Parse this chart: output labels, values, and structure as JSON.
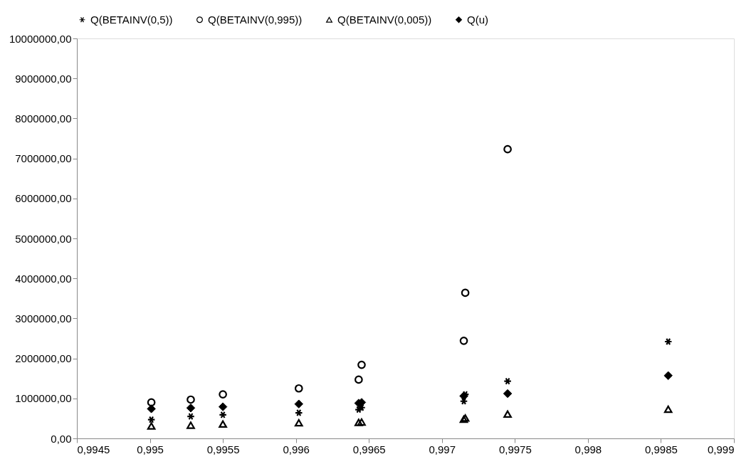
{
  "chart_data": {
    "type": "scatter",
    "legend": "top",
    "grid": false,
    "xlim": [
      0.9945,
      0.999
    ],
    "xticks": [
      {
        "value": 0.9945,
        "label": "0,9945"
      },
      {
        "value": 0.995,
        "label": "0,995"
      },
      {
        "value": 0.9955,
        "label": "0,9955"
      },
      {
        "value": 0.996,
        "label": "0,996"
      },
      {
        "value": 0.9965,
        "label": "0,9965"
      },
      {
        "value": 0.997,
        "label": "0,997"
      },
      {
        "value": 0.9975,
        "label": "0,9975"
      },
      {
        "value": 0.998,
        "label": "0,998"
      },
      {
        "value": 0.9985,
        "label": "0,9985"
      },
      {
        "value": 0.999,
        "label": "0,999"
      }
    ],
    "ylim": [
      0,
      10000000
    ],
    "yticks": [
      {
        "value": 0,
        "label": "0,00"
      },
      {
        "value": 1000000,
        "label": "1000000,00"
      },
      {
        "value": 2000000,
        "label": "2000000,00"
      },
      {
        "value": 3000000,
        "label": "3000000,00"
      },
      {
        "value": 4000000,
        "label": "4000000,00"
      },
      {
        "value": 5000000,
        "label": "5000000,00"
      },
      {
        "value": 6000000,
        "label": "6000000,00"
      },
      {
        "value": 7000000,
        "label": "7000000,00"
      },
      {
        "value": 8000000,
        "label": "8000000,00"
      },
      {
        "value": 9000000,
        "label": "9000000,00"
      },
      {
        "value": 10000000,
        "label": "10000000,00"
      }
    ],
    "series": [
      {
        "name": "Q(BETAINV(0,5))",
        "color": "#000000",
        "marker": "cross",
        "x": [
          0.99501,
          0.99528,
          0.9955,
          0.99602,
          0.99643,
          0.99645,
          0.99715,
          0.99716,
          0.99745,
          0.99855
        ],
        "values": [
          470000,
          550000,
          590000,
          640000,
          720000,
          770000,
          930000,
          1100000,
          1430000,
          2420000
        ]
      },
      {
        "name": "Q(BETAINV(0,995))",
        "color": "#000000",
        "marker": "circle",
        "x": [
          0.99501,
          0.99528,
          0.9955,
          0.99602,
          0.99643,
          0.99645,
          0.99715,
          0.99716,
          0.99745
        ],
        "values": [
          900000,
          970000,
          1100000,
          1250000,
          1470000,
          1840000,
          2440000,
          3640000,
          7230000
        ]
      },
      {
        "name": "Q(BETAINV(0,005))",
        "color": "#000000",
        "marker": "triangle",
        "x": [
          0.99501,
          0.99528,
          0.9955,
          0.99602,
          0.99643,
          0.99645,
          0.99715,
          0.99716,
          0.99745,
          0.99855
        ],
        "values": [
          310000,
          330000,
          360000,
          390000,
          400000,
          410000,
          480000,
          510000,
          610000,
          730000
        ]
      },
      {
        "name": "Q(u)",
        "color": "#000000",
        "marker": "diamond",
        "x": [
          0.99501,
          0.99528,
          0.9955,
          0.99602,
          0.99643,
          0.99645,
          0.99715,
          0.99745,
          0.99855
        ],
        "values": [
          740000,
          760000,
          790000,
          860000,
          880000,
          900000,
          1060000,
          1120000,
          1570000
        ]
      }
    ]
  }
}
